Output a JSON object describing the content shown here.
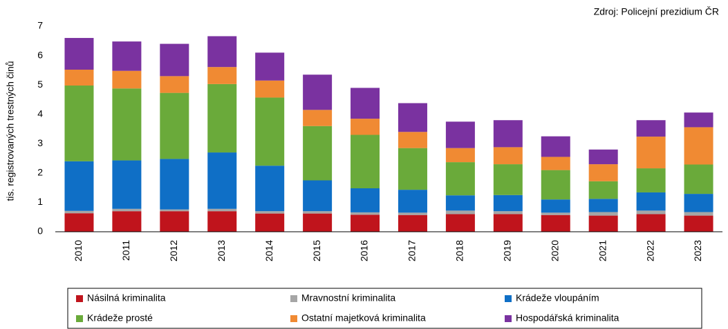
{
  "chart_data": {
    "type": "stacked_bar",
    "source": "Zdroj: Policejní  prezidium ČR",
    "ylabel": "tis. registrovaných trestných činů",
    "categories": [
      "2010",
      "2011",
      "2012",
      "2013",
      "2014",
      "2015",
      "2016",
      "2017",
      "2018",
      "2019",
      "2020",
      "2021",
      "2022",
      "2023"
    ],
    "series": [
      {
        "name": "Násilná kriminalita",
        "color": "#c0141c",
        "values": [
          0.63,
          0.7,
          0.7,
          0.7,
          0.62,
          0.62,
          0.58,
          0.57,
          0.6,
          0.6,
          0.57,
          0.55,
          0.6,
          0.55
        ]
      },
      {
        "name": "Mravnostní kriminalita",
        "color": "#a6a6a6",
        "values": [
          0.08,
          0.08,
          0.06,
          0.08,
          0.08,
          0.08,
          0.08,
          0.08,
          0.12,
          0.1,
          0.08,
          0.12,
          0.12,
          0.12
        ]
      },
      {
        "name": "Krádeže vloupáním",
        "color": "#0f6fc6",
        "values": [
          1.69,
          1.65,
          1.72,
          1.92,
          1.55,
          1.05,
          0.82,
          0.78,
          0.52,
          0.55,
          0.45,
          0.45,
          0.62,
          0.62
        ]
      },
      {
        "name": "Krádeže prosté",
        "color": "#6aaa3a",
        "values": [
          2.58,
          2.45,
          2.25,
          2.33,
          2.32,
          1.85,
          1.82,
          1.42,
          1.13,
          1.05,
          1.0,
          0.6,
          0.82,
          1.0
        ]
      },
      {
        "name": "Ostatní majetková kriminalita",
        "color": "#f08a33",
        "values": [
          0.54,
          0.6,
          0.57,
          0.58,
          0.58,
          0.55,
          0.55,
          0.55,
          0.48,
          0.58,
          0.45,
          0.58,
          1.08,
          1.27
        ]
      },
      {
        "name": "Hospodářská kriminalita",
        "color": "#7a32a0",
        "values": [
          1.08,
          1.0,
          1.1,
          1.05,
          0.95,
          1.2,
          1.05,
          0.98,
          0.9,
          0.92,
          0.7,
          0.5,
          0.56,
          0.5
        ]
      }
    ],
    "ylim": [
      0,
      7
    ],
    "yticks": [
      0,
      1,
      2,
      3,
      4,
      5,
      6,
      7
    ],
    "grid": false
  }
}
